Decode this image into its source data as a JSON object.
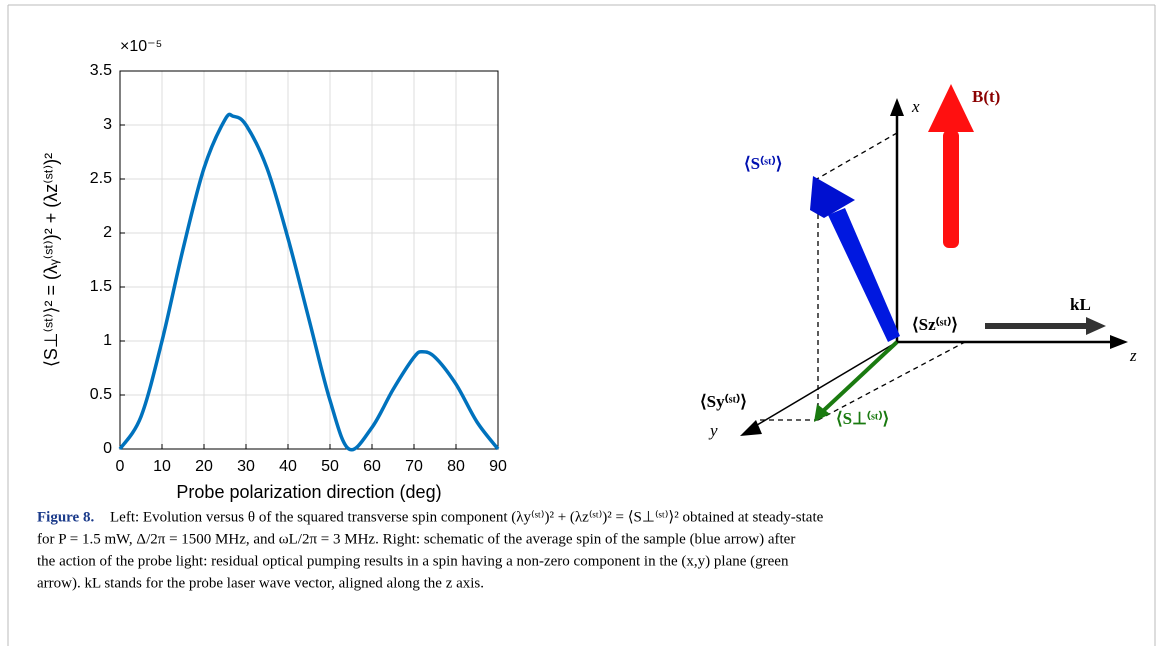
{
  "chart_data": {
    "type": "line",
    "x_label": "Probe polarization direction (deg)",
    "y_label": "⟨S⊥⁽ˢᵗ⁾⟩² = (λᵧ⁽ˢᵗ⁾)² + (λz⁽ˢᵗ⁾)²",
    "y_multiplier": "×10⁻⁵",
    "x": [
      0,
      5,
      10,
      15,
      20,
      25,
      27,
      30,
      35,
      40,
      45,
      50,
      54.5,
      60,
      65,
      70,
      72,
      75,
      80,
      85,
      90
    ],
    "series": [
      {
        "color": "#0072bd",
        "values": [
          0,
          0.3,
          1.0,
          1.85,
          2.6,
          3.05,
          3.08,
          3.0,
          2.6,
          1.95,
          1.2,
          0.45,
          0,
          0.2,
          0.55,
          0.85,
          0.9,
          0.85,
          0.6,
          0.25,
          0
        ]
      }
    ],
    "xlim": [
      0,
      90
    ],
    "xticks": [
      0,
      10,
      20,
      30,
      40,
      50,
      60,
      70,
      80,
      90
    ],
    "ylim": [
      0,
      3.5
    ],
    "yticks": [
      0,
      0.5,
      1,
      1.5,
      2,
      2.5,
      3,
      3.5
    ],
    "grid": true
  },
  "diagram": {
    "labels": {
      "x_axis": "x",
      "z_axis": "z",
      "y_axis": "y",
      "field": "B(t)",
      "spin": "⟨S⁽ˢᵗ⁾⟩",
      "wave_vector": "kL",
      "spin_z": "⟨Sz⁽ˢᵗ⁾⟩",
      "spin_y": "⟨Sy⁽ˢᵗ⁾⟩",
      "spin_perp": "⟨S⊥⁽ˢᵗ⁾⟩"
    }
  },
  "caption": {
    "label": "Figure 8.",
    "lines": [
      "Left: Evolution versus θ of the squared transverse spin component (λy⁽ˢᵗ⁾)² + (λz⁽ˢᵗ⁾)² = ⟨S⊥⁽ˢᵗ⁾⟩² obtained at steady-state",
      "for P = 1.5 mW, Δ/2π = 1500 MHz, and ωL/2π = 3 MHz. Right: schematic of the average spin of the sample (blue arrow) after",
      "the action of the probe light: residual optical pumping results in a spin having a non-zero component in the (x,y) plane (green",
      "arrow). kL stands for the probe laser wave vector, aligned along the z axis."
    ]
  }
}
